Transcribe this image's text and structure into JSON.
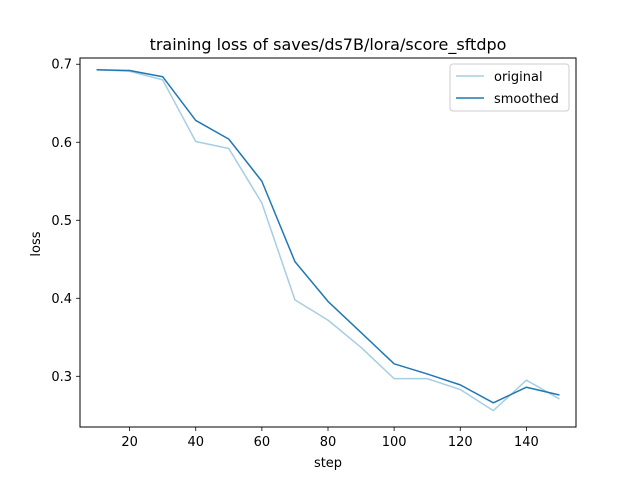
{
  "chart_data": {
    "type": "line",
    "title": "training loss of saves/ds7B/lora/score_sftdpo",
    "xlabel": "step",
    "ylabel": "loss",
    "xlim": [
      5,
      155
    ],
    "ylim": [
      0.235,
      0.708
    ],
    "xticks": [
      20,
      40,
      60,
      80,
      100,
      120,
      140
    ],
    "yticks": [
      0.3,
      0.4,
      0.5,
      0.6,
      0.7
    ],
    "grid": false,
    "legend": "upper right",
    "x": [
      10,
      20,
      30,
      40,
      50,
      60,
      70,
      80,
      90,
      100,
      110,
      120,
      130,
      140,
      150
    ],
    "series": [
      {
        "name": "original",
        "color": "#a6cee3",
        "values": [
          0.693,
          0.691,
          0.68,
          0.601,
          0.592,
          0.522,
          0.398,
          0.372,
          0.337,
          0.297,
          0.297,
          0.283,
          0.256,
          0.295,
          0.271
        ]
      },
      {
        "name": "smoothed",
        "color": "#1f78b4",
        "values": [
          0.693,
          0.692,
          0.684,
          0.628,
          0.604,
          0.55,
          0.447,
          0.396,
          0.356,
          0.316,
          0.303,
          0.289,
          0.266,
          0.286,
          0.276
        ]
      }
    ]
  }
}
